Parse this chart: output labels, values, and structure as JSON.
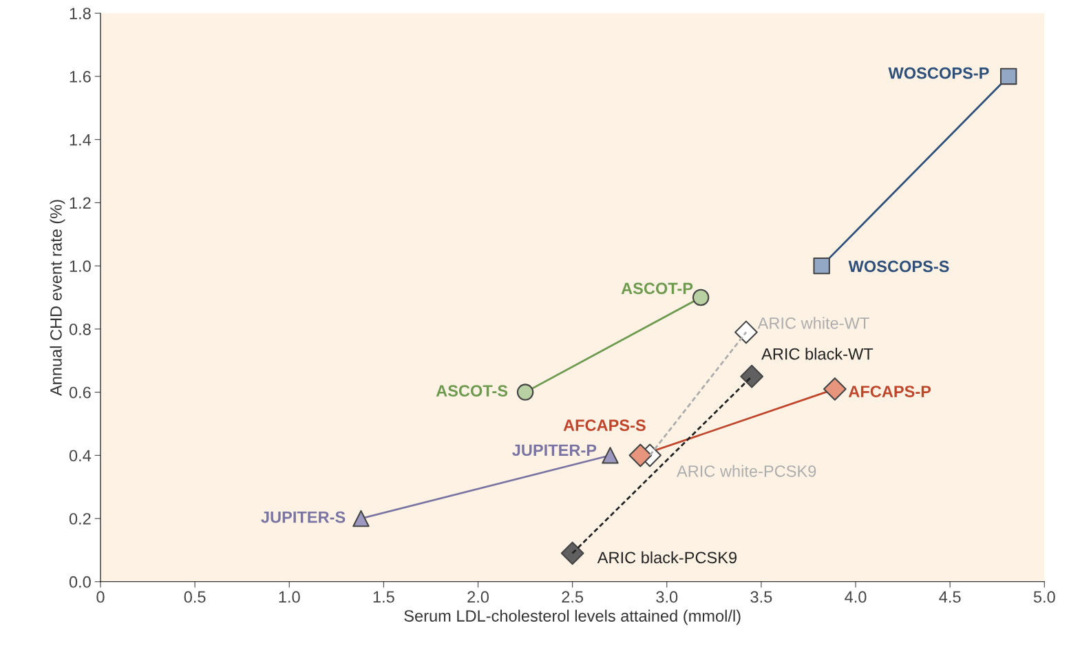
{
  "chart_data": {
    "type": "line",
    "xlabel": "Serum LDL-cholesterol levels attained (mmol/l)",
    "ylabel": "Annual CHD event rate (%)",
    "xlim": [
      0,
      5
    ],
    "xticks": [
      0,
      0.5,
      {
        "value": 1,
        "label": "1.0"
      },
      1.5,
      {
        "value": 2,
        "label": "2.0"
      },
      2.5,
      {
        "value": 3,
        "label": "3.0"
      },
      3.5,
      {
        "value": 4,
        "label": "4.0"
      },
      4.5,
      {
        "value": 5,
        "label": "5.0"
      }
    ],
    "ylim": [
      0,
      1.8
    ],
    "yticks": [
      {
        "value": 0,
        "label": "0.0"
      },
      0.2,
      0.4,
      0.6,
      0.8,
      {
        "value": 1,
        "label": "1.0"
      },
      1.2,
      1.4,
      1.6,
      1.8
    ],
    "grid": false,
    "series": [
      {
        "color": "#2e4f7a",
        "colors": [
          "#93a8c4",
          "#93a8c4"
        ],
        "marker": "square",
        "line_style": "solid",
        "x": [
          3.82,
          4.81
        ],
        "values": [
          1.0,
          1.6
        ]
      },
      {
        "color": "#6e9a4f",
        "colors": [
          "#b8d0a2",
          "#b8d0a2"
        ],
        "marker": "circle",
        "line_style": "solid",
        "x": [
          2.25,
          3.18
        ],
        "values": [
          0.6,
          0.9
        ]
      },
      {
        "color": "#adadad",
        "colors": [
          "#ffffff",
          "#ffffff"
        ],
        "marker": "diamond",
        "line_style": "dashed",
        "x": [
          2.91,
          3.42
        ],
        "values": [
          0.4,
          0.79
        ]
      },
      {
        "color": "#222222",
        "colors": [
          "#606060",
          "#606060"
        ],
        "marker": "diamond",
        "line_style": "dashed",
        "x": [
          2.5,
          3.45
        ],
        "values": [
          0.09,
          0.65
        ]
      },
      {
        "color": "#c0452b",
        "colors": [
          "#e8957e",
          "#e8957e"
        ],
        "marker": "diamond",
        "line_style": "solid",
        "x": [
          2.86,
          3.89
        ],
        "values": [
          0.4,
          0.61
        ]
      },
      {
        "color": "#7a74a3",
        "colors": [
          "#9d98c2",
          "#9d98c2"
        ],
        "marker": "triangle",
        "line_style": "solid",
        "x": [
          1.38,
          2.7
        ],
        "values": [
          0.2,
          0.4
        ]
      }
    ],
    "annotations": [
      {
        "text": "WOSCOPS-S",
        "x": 3.82,
        "y": 1.0
      },
      {
        "text": "WOSCOPS-P",
        "x": 4.81,
        "y": 1.6
      },
      {
        "text": "ASCOT-S",
        "x": 2.25,
        "y": 0.6
      },
      {
        "text": "ASCOT-P",
        "x": 3.18,
        "y": 0.9
      },
      {
        "text": "ARIC white-PCSK9",
        "x": 2.91,
        "y": 0.4
      },
      {
        "text": "ARIC white-WT",
        "x": 3.42,
        "y": 0.79
      },
      {
        "text": "ARIC black-PCSK9",
        "x": 2.5,
        "y": 0.09
      },
      {
        "text": "ARIC black-WT",
        "x": 3.45,
        "y": 0.65
      },
      {
        "text": "AFCAPS-S",
        "x": 2.86,
        "y": 0.4
      },
      {
        "text": "AFCAPS-P",
        "x": 3.89,
        "y": 0.61
      },
      {
        "text": "JUPITER-S",
        "x": 1.38,
        "y": 0.2
      },
      {
        "text": "JUPITER-P",
        "x": 2.7,
        "y": 0.4
      }
    ]
  }
}
